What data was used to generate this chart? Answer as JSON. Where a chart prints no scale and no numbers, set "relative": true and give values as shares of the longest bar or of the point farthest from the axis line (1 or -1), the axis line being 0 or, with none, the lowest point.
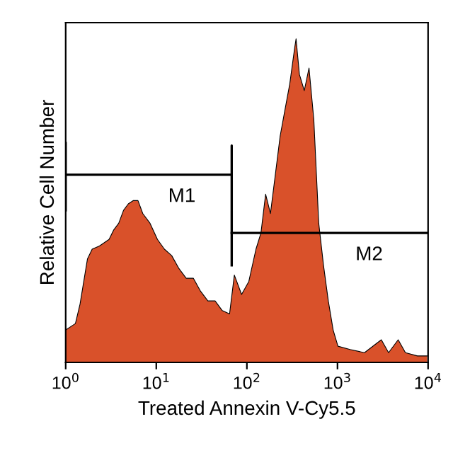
{
  "chart_data": {
    "type": "area",
    "relative": true,
    "log": "x",
    "xlabel": "Treated Annexin V-Cy5.5",
    "ylabel": "Relative Cell Number",
    "xlim": [
      1,
      10000
    ],
    "xticks": [
      {
        "value": 1,
        "label": "10$^{0}$"
      },
      {
        "value": 10,
        "label": "10$^{1}$"
      },
      {
        "value": 100,
        "label": "10$^{2}$"
      },
      {
        "value": 1000,
        "label": "10$^{3}$"
      },
      {
        "value": 10000,
        "label": "10$^{4}$"
      }
    ],
    "tick_labels": "x",
    "grid": false,
    "legend": false,
    "series": [
      {
        "color": "#d9512a",
        "x": [
          1,
          1.28,
          1.44,
          1.74,
          1.96,
          2.36,
          3.01,
          3.4,
          3.85,
          4.35,
          4.91,
          5.55,
          6.28,
          7.1,
          8.53,
          10.3,
          12.3,
          14.8,
          17.8,
          21.4,
          25.7,
          30.8,
          37.1,
          44.6,
          53.5,
          64.4,
          72.7,
          87.4,
          105,
          126,
          143,
          161,
          182,
          206,
          233,
          263,
          297,
          336,
          349,
          380,
          430,
          485,
          548,
          621,
          701,
          792,
          896,
          1012,
          1375,
          1986,
          3048,
          3664,
          4677,
          5623,
          7638,
          9750
        ],
        "values": [
          0.1,
          0.12,
          0.18,
          0.32,
          0.35,
          0.36,
          0.38,
          0.41,
          0.43,
          0.47,
          0.49,
          0.5,
          0.5,
          0.46,
          0.43,
          0.38,
          0.35,
          0.33,
          0.29,
          0.26,
          0.26,
          0.22,
          0.19,
          0.19,
          0.16,
          0.15,
          0.27,
          0.21,
          0.25,
          0.35,
          0.4,
          0.52,
          0.46,
          0.58,
          0.7,
          0.78,
          0.86,
          0.97,
          1.0,
          0.89,
          0.84,
          0.91,
          0.75,
          0.43,
          0.3,
          0.19,
          0.1,
          0.05,
          0.04,
          0.03,
          0.07,
          0.03,
          0.07,
          0.03,
          0.02,
          0.02
        ]
      },
      {
        "type": "line",
        "name": "M1",
        "color": "#000000",
        "x": [
          1,
          1,
          1,
          68,
          68,
          68
        ],
        "values": [
          0.47,
          0.68,
          0.58,
          0.58,
          0.67,
          0.3
        ]
      },
      {
        "type": "line",
        "name": "M2",
        "color": "#000000",
        "x": [
          68,
          10000
        ],
        "values": [
          0.4,
          0.4
        ]
      }
    ]
  }
}
